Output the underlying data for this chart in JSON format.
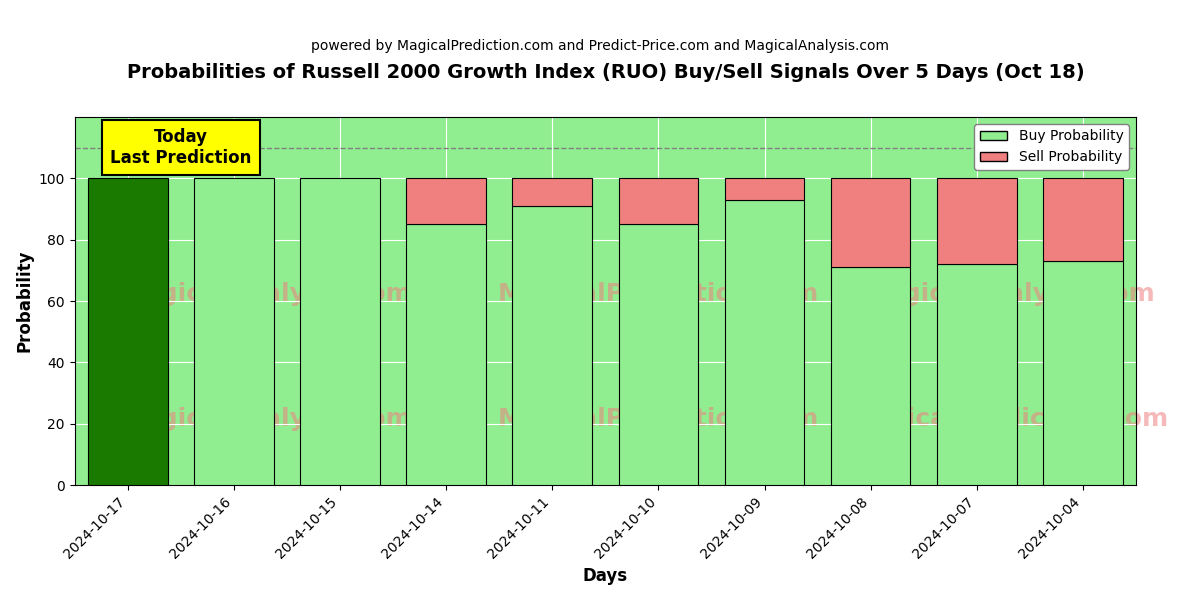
{
  "title": "Probabilities of Russell 2000 Growth Index (RUO) Buy/Sell Signals Over 5 Days (Oct 18)",
  "subtitle": "powered by MagicalPrediction.com and Predict-Price.com and MagicalAnalysis.com",
  "xlabel": "Days",
  "ylabel": "Probability",
  "categories": [
    "2024-10-17",
    "2024-10-16",
    "2024-10-15",
    "2024-10-14",
    "2024-10-11",
    "2024-10-10",
    "2024-10-09",
    "2024-10-08",
    "2024-10-07",
    "2024-10-04"
  ],
  "buy_values": [
    100,
    100,
    100,
    85,
    91,
    85,
    93,
    71,
    72,
    73
  ],
  "sell_values": [
    0,
    0,
    0,
    15,
    9,
    15,
    7,
    29,
    28,
    27
  ],
  "today_bar_color": "#1a7a00",
  "other_buy_color": "#90ee90",
  "sell_color": "#f08080",
  "today_box_color": "#ffff00",
  "today_label": "Today\nLast Prediction",
  "ylim": [
    0,
    120
  ],
  "yticks": [
    0,
    20,
    40,
    60,
    80,
    100
  ],
  "dashed_line_y": 110,
  "plot_bg_color": "#90ee90",
  "background_color": "#ffffff",
  "legend_buy_label": "Buy Probability",
  "legend_sell_label": "Sell Probability",
  "bar_edge_color": "#000000",
  "bar_linewidth": 0.8,
  "bar_width": 0.75
}
